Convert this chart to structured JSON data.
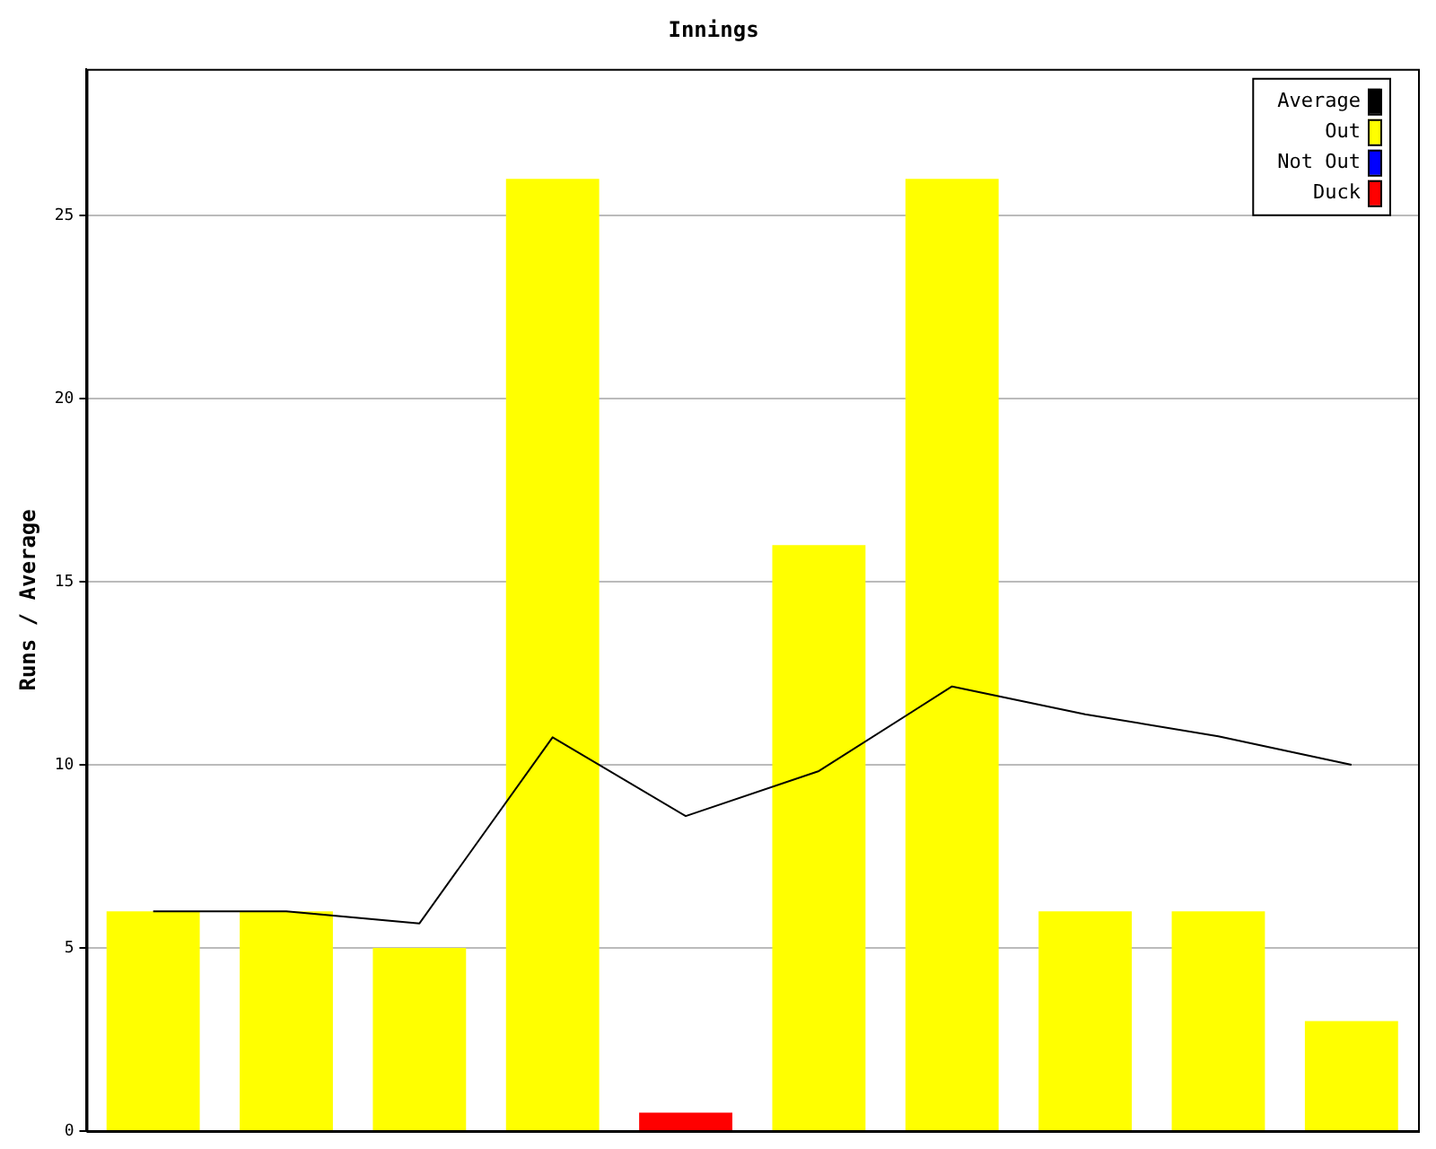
{
  "chart_data": {
    "type": "bar",
    "title": "Innings",
    "ylabel": "Runs / Average",
    "categories": [
      null,
      null,
      null,
      null,
      null,
      null,
      null,
      null,
      null,
      null
    ],
    "stacked": true,
    "series": [
      {
        "name": "Average",
        "type": "line",
        "color": "#000000",
        "values": [
          6,
          6,
          5.67,
          10.75,
          8.6,
          9.83,
          12.14,
          11.38,
          10.78,
          10
        ]
      },
      {
        "name": "Out",
        "color": "#ffff00",
        "values": [
          6,
          6,
          5,
          26,
          null,
          16,
          26,
          6,
          6,
          3
        ]
      },
      {
        "name": "Not Out",
        "color": "#0000ff",
        "values": [
          null,
          null,
          null,
          null,
          null,
          null,
          null,
          null,
          null,
          null
        ]
      },
      {
        "name": "Duck",
        "color": "#ff0000",
        "values": [
          null,
          null,
          null,
          null,
          0.5,
          null,
          null,
          null,
          null,
          null
        ]
      }
    ],
    "ylim": [
      0,
      29
    ],
    "yticks": [
      0,
      5,
      10,
      15,
      20,
      25
    ],
    "grid": "y",
    "legend": "top right",
    "marker": "none",
    "line_style": "solid"
  }
}
